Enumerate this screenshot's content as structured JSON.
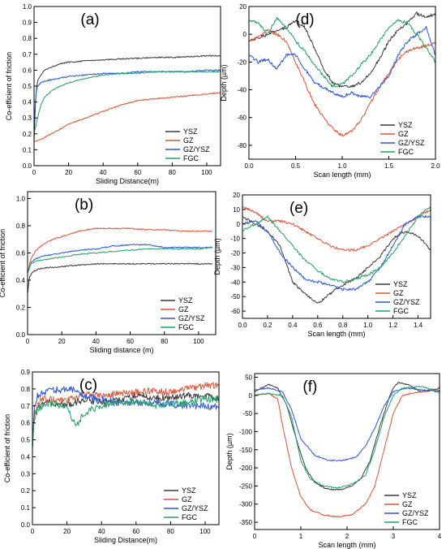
{
  "colors": {
    "YSZ": "#3a3a3a",
    "GZ": "#d9553a",
    "GZ/YSZ": "#2a56d6",
    "FGC": "#24a06a"
  },
  "chart_data": [
    {
      "id": "a",
      "type": "line",
      "panel_label": "(a)",
      "xlabel": "Sliding Distance(m)",
      "ylabel": "Co-efficient of friction",
      "xlim": [
        0,
        108
      ],
      "ylim": [
        0,
        1.0
      ],
      "xticks": [
        0,
        20,
        40,
        60,
        80,
        100
      ],
      "yticks": [
        0.0,
        0.1,
        0.2,
        0.3,
        0.4,
        0.5,
        0.6,
        0.7,
        0.8,
        0.9,
        1.0
      ],
      "legend": "bottom-right",
      "grid": false,
      "series": [
        {
          "name": "YSZ",
          "x": [
            0,
            1,
            2,
            4,
            6,
            10,
            15,
            20,
            30,
            40,
            50,
            60,
            70,
            80,
            90,
            100,
            108
          ],
          "y": [
            0.15,
            0.45,
            0.53,
            0.57,
            0.6,
            0.62,
            0.64,
            0.65,
            0.66,
            0.665,
            0.67,
            0.675,
            0.68,
            0.68,
            0.685,
            0.69,
            0.69
          ]
        },
        {
          "name": "GZ",
          "x": [
            0,
            5,
            10,
            15,
            20,
            30,
            40,
            50,
            60,
            70,
            80,
            90,
            100,
            108
          ],
          "y": [
            0.15,
            0.17,
            0.2,
            0.23,
            0.26,
            0.3,
            0.34,
            0.38,
            0.41,
            0.42,
            0.43,
            0.44,
            0.45,
            0.46
          ]
        },
        {
          "name": "GZ/YSZ",
          "x": [
            0,
            1,
            2,
            4,
            6,
            10,
            15,
            20,
            30,
            40,
            50,
            60,
            70,
            80,
            90,
            100,
            108
          ],
          "y": [
            0.25,
            0.45,
            0.5,
            0.52,
            0.53,
            0.54,
            0.55,
            0.56,
            0.57,
            0.58,
            0.58,
            0.59,
            0.59,
            0.59,
            0.59,
            0.6,
            0.6
          ]
        },
        {
          "name": "FGC",
          "x": [
            0,
            2,
            4,
            6,
            10,
            15,
            20,
            30,
            40,
            50,
            60,
            70,
            80,
            90,
            100,
            108
          ],
          "y": [
            0.2,
            0.3,
            0.38,
            0.43,
            0.47,
            0.5,
            0.52,
            0.55,
            0.57,
            0.58,
            0.58,
            0.59,
            0.59,
            0.59,
            0.59,
            0.59
          ]
        }
      ]
    },
    {
      "id": "b",
      "type": "line",
      "panel_label": "(b)",
      "xlabel": "Sliding distance (m)",
      "ylabel": "Co-efficient of friction",
      "xlim": [
        0,
        110
      ],
      "ylim": [
        0,
        1.05
      ],
      "xticks": [
        0,
        20,
        40,
        60,
        80,
        100
      ],
      "yticks": [
        0.0,
        0.2,
        0.4,
        0.6,
        0.8,
        1.0
      ],
      "legend": "bottom-right",
      "grid": false,
      "series": [
        {
          "name": "YSZ",
          "x": [
            0,
            1,
            3,
            6,
            10,
            20,
            30,
            40,
            50,
            60,
            70,
            80,
            90,
            100,
            108
          ],
          "y": [
            0.3,
            0.42,
            0.46,
            0.48,
            0.49,
            0.5,
            0.51,
            0.52,
            0.52,
            0.52,
            0.52,
            0.52,
            0.52,
            0.52,
            0.52
          ]
        },
        {
          "name": "GZ",
          "x": [
            0,
            2,
            5,
            10,
            15,
            20,
            30,
            40,
            50,
            60,
            70,
            80,
            90,
            100,
            108
          ],
          "y": [
            0.45,
            0.56,
            0.62,
            0.67,
            0.7,
            0.72,
            0.76,
            0.78,
            0.78,
            0.78,
            0.77,
            0.77,
            0.76,
            0.76,
            0.76
          ]
        },
        {
          "name": "GZ/YSZ",
          "x": [
            0,
            2,
            5,
            10,
            15,
            20,
            30,
            40,
            50,
            60,
            70,
            80,
            90,
            100,
            108
          ],
          "y": [
            0.45,
            0.53,
            0.56,
            0.58,
            0.59,
            0.6,
            0.62,
            0.63,
            0.65,
            0.66,
            0.66,
            0.64,
            0.64,
            0.64,
            0.64
          ]
        },
        {
          "name": "FGC",
          "x": [
            0,
            2,
            5,
            10,
            15,
            20,
            30,
            40,
            50,
            60,
            70,
            80,
            90,
            100,
            108
          ],
          "y": [
            0.45,
            0.52,
            0.54,
            0.55,
            0.56,
            0.57,
            0.59,
            0.6,
            0.61,
            0.62,
            0.63,
            0.63,
            0.63,
            0.63,
            0.64
          ]
        }
      ]
    },
    {
      "id": "c",
      "type": "line",
      "panel_label": "(c)",
      "xlabel": "Sliding Distance(m)",
      "ylabel": "Co-efficient of friction",
      "xlim": [
        0,
        108
      ],
      "ylim": [
        0,
        0.9
      ],
      "xticks": [
        0,
        20,
        40,
        60,
        80,
        100
      ],
      "yticks": [
        0.0,
        0.1,
        0.2,
        0.3,
        0.4,
        0.5,
        0.6,
        0.7,
        0.8,
        0.9
      ],
      "legend": "bottom-right",
      "grid": false,
      "series": [
        {
          "name": "YSZ",
          "x": [
            0,
            1,
            3,
            6,
            10,
            20,
            30,
            40,
            50,
            60,
            70,
            80,
            90,
            100,
            108
          ],
          "y": [
            0.45,
            0.65,
            0.7,
            0.71,
            0.72,
            0.7,
            0.74,
            0.72,
            0.73,
            0.76,
            0.75,
            0.75,
            0.76,
            0.76,
            0.74
          ]
        },
        {
          "name": "GZ",
          "x": [
            0,
            1,
            3,
            6,
            10,
            20,
            30,
            40,
            50,
            60,
            70,
            80,
            90,
            100,
            108
          ],
          "y": [
            0.45,
            0.65,
            0.72,
            0.74,
            0.74,
            0.73,
            0.77,
            0.76,
            0.77,
            0.78,
            0.79,
            0.78,
            0.8,
            0.82,
            0.82
          ]
        },
        {
          "name": "GZ/YSZ",
          "x": [
            0,
            1,
            3,
            6,
            10,
            20,
            25,
            30,
            40,
            50,
            60,
            70,
            80,
            90,
            100,
            108
          ],
          "y": [
            0.45,
            0.68,
            0.76,
            0.78,
            0.79,
            0.8,
            0.8,
            0.76,
            0.74,
            0.72,
            0.72,
            0.72,
            0.71,
            0.7,
            0.7,
            0.69
          ]
        },
        {
          "name": "FGC",
          "x": [
            0,
            1,
            3,
            6,
            10,
            20,
            25,
            30,
            40,
            50,
            60,
            70,
            80,
            90,
            100,
            108
          ],
          "y": [
            0.45,
            0.62,
            0.68,
            0.7,
            0.71,
            0.7,
            0.58,
            0.66,
            0.7,
            0.72,
            0.72,
            0.7,
            0.71,
            0.72,
            0.74,
            0.74
          ]
        }
      ]
    },
    {
      "id": "d",
      "type": "line",
      "panel_label": "(d)",
      "xlabel": "Scan length (mm)",
      "ylabel": "Depth (µm)",
      "xlim": [
        0,
        2.0
      ],
      "ylim": [
        -90,
        20
      ],
      "xticks": [
        0.0,
        0.5,
        1.0,
        1.5,
        2.0
      ],
      "yticks": [
        -80,
        -60,
        -40,
        -20,
        0,
        20
      ],
      "legend": "bottom-right",
      "grid": false,
      "series": [
        {
          "name": "YSZ",
          "x": [
            0,
            0.1,
            0.2,
            0.3,
            0.4,
            0.5,
            0.6,
            0.7,
            0.8,
            0.9,
            1.0,
            1.1,
            1.2,
            1.3,
            1.4,
            1.5,
            1.6,
            1.7,
            1.8,
            1.9,
            2.0
          ],
          "y": [
            -5,
            -3,
            0,
            3,
            5,
            10,
            5,
            -10,
            -25,
            -35,
            -38,
            -38,
            -35,
            -28,
            -18,
            -5,
            3,
            8,
            15,
            12,
            15
          ]
        },
        {
          "name": "GZ",
          "x": [
            0,
            0.1,
            0.2,
            0.3,
            0.4,
            0.5,
            0.6,
            0.7,
            0.8,
            0.9,
            1.0,
            1.1,
            1.2,
            1.3,
            1.4,
            1.5,
            1.6,
            1.7,
            1.8,
            1.9,
            2.0
          ],
          "y": [
            -5,
            -2,
            3,
            0,
            -5,
            -20,
            -35,
            -50,
            -60,
            -68,
            -73,
            -70,
            -62,
            -50,
            -38,
            -28,
            -18,
            -12,
            -10,
            -8,
            -7
          ]
        },
        {
          "name": "GZ/YSZ",
          "x": [
            0,
            0.1,
            0.2,
            0.3,
            0.4,
            0.5,
            0.6,
            0.7,
            0.8,
            0.9,
            1.0,
            1.1,
            1.2,
            1.3,
            1.4,
            1.5,
            1.6,
            1.7,
            1.8,
            1.9,
            2.0
          ],
          "y": [
            -15,
            -20,
            -18,
            -25,
            -15,
            -15,
            -25,
            -35,
            -38,
            -42,
            -45,
            -42,
            -45,
            -45,
            -38,
            -30,
            -15,
            -5,
            0,
            5,
            -15
          ]
        },
        {
          "name": "FGC",
          "x": [
            0,
            0.1,
            0.2,
            0.3,
            0.4,
            0.5,
            0.6,
            0.7,
            0.8,
            0.9,
            1.0,
            1.1,
            1.2,
            1.3,
            1.4,
            1.5,
            1.6,
            1.7,
            1.8,
            1.9,
            2.0
          ],
          "y": [
            10,
            8,
            0,
            12,
            5,
            -5,
            -12,
            -22,
            -30,
            -38,
            -36,
            -30,
            -22,
            -15,
            -5,
            5,
            10,
            8,
            0,
            -10,
            -20
          ]
        }
      ]
    },
    {
      "id": "e",
      "type": "line",
      "panel_label": "(e)",
      "xlabel": "Scan length (mm)",
      "ylabel": "Depth (µm)",
      "xlim": [
        0,
        1.5
      ],
      "ylim": [
        -65,
        20
      ],
      "xticks": [
        0.0,
        0.2,
        0.4,
        0.6,
        0.8,
        1.0,
        1.2,
        1.4
      ],
      "yticks": [
        -60,
        -50,
        -40,
        -30,
        -20,
        -10,
        0,
        10,
        20
      ],
      "legend": "bottom-right",
      "grid": false,
      "series": [
        {
          "name": "YSZ",
          "x": [
            0,
            0.1,
            0.2,
            0.3,
            0.4,
            0.5,
            0.6,
            0.7,
            0.8,
            0.9,
            1.0,
            1.1,
            1.2,
            1.3,
            1.4,
            1.5
          ],
          "y": [
            5,
            0,
            -5,
            -15,
            -40,
            -48,
            -55,
            -48,
            -42,
            -38,
            -30,
            -22,
            -10,
            -5,
            -8,
            -18
          ]
        },
        {
          "name": "GZ",
          "x": [
            0,
            0.1,
            0.2,
            0.3,
            0.4,
            0.5,
            0.6,
            0.7,
            0.8,
            0.9,
            1.0,
            1.1,
            1.2,
            1.3,
            1.4,
            1.5
          ],
          "y": [
            12,
            8,
            2,
            2,
            0,
            -5,
            -10,
            -15,
            -18,
            -18,
            -15,
            -10,
            -5,
            0,
            5,
            10
          ]
        },
        {
          "name": "GZ/YSZ",
          "x": [
            0,
            0.1,
            0.2,
            0.3,
            0.4,
            0.5,
            0.6,
            0.7,
            0.8,
            0.9,
            1.0,
            1.1,
            1.2,
            1.3,
            1.4,
            1.5
          ],
          "y": [
            0,
            2,
            -5,
            -20,
            -30,
            -38,
            -40,
            -42,
            -45,
            -45,
            -40,
            -30,
            -15,
            0,
            5,
            5
          ]
        },
        {
          "name": "FGC",
          "x": [
            0,
            0.1,
            0.2,
            0.3,
            0.4,
            0.5,
            0.6,
            0.7,
            0.8,
            0.9,
            1.0,
            1.1,
            1.2,
            1.3,
            1.4,
            1.5
          ],
          "y": [
            -5,
            0,
            5,
            -5,
            -15,
            -25,
            -32,
            -38,
            -40,
            -38,
            -35,
            -30,
            -20,
            -8,
            5,
            12
          ]
        }
      ]
    },
    {
      "id": "f",
      "type": "line",
      "panel_label": "(f)",
      "xlabel": "Scan length (mm)",
      "ylabel": "Depth (µm)",
      "xlim": [
        0,
        4
      ],
      "ylim": [
        -370,
        60
      ],
      "xticks": [
        0,
        1,
        2,
        3,
        4
      ],
      "yticks": [
        -350,
        -300,
        -250,
        -200,
        -150,
        -100,
        -50,
        0,
        50
      ],
      "legend": "bottom-right",
      "grid": false,
      "series": [
        {
          "name": "YSZ",
          "x": [
            0,
            0.3,
            0.5,
            0.7,
            0.9,
            1.1,
            1.3,
            1.5,
            1.7,
            1.9,
            2.1,
            2.3,
            2.5,
            2.7,
            2.9,
            3.0,
            3.1,
            3.3,
            3.6,
            4.0
          ],
          "y": [
            10,
            30,
            20,
            -30,
            -120,
            -200,
            -240,
            -255,
            -260,
            -260,
            -250,
            -230,
            -180,
            -90,
            -10,
            20,
            35,
            30,
            10,
            20
          ]
        },
        {
          "name": "GZ",
          "x": [
            0,
            0.3,
            0.5,
            0.6,
            0.8,
            1.0,
            1.2,
            1.5,
            1.8,
            2.1,
            2.4,
            2.6,
            2.8,
            3.0,
            3.2,
            3.6,
            4.0
          ],
          "y": [
            0,
            5,
            -10,
            -80,
            -200,
            -280,
            -315,
            -330,
            -335,
            -330,
            -300,
            -250,
            -150,
            -50,
            0,
            10,
            15
          ]
        },
        {
          "name": "GZ/YSZ",
          "x": [
            0,
            0.3,
            0.6,
            0.8,
            1.0,
            1.3,
            1.6,
            1.9,
            2.2,
            2.4,
            2.6,
            2.8,
            3.0,
            3.3,
            3.6,
            4.0
          ],
          "y": [
            15,
            20,
            10,
            -40,
            -120,
            -165,
            -180,
            -180,
            -170,
            -140,
            -90,
            -30,
            10,
            20,
            15,
            10
          ]
        },
        {
          "name": "FGC",
          "x": [
            0,
            0.3,
            0.6,
            0.8,
            1.0,
            1.2,
            1.5,
            1.8,
            2.1,
            2.4,
            2.6,
            2.8,
            3.0,
            3.2,
            3.6,
            4.0
          ],
          "y": [
            0,
            5,
            0,
            -60,
            -180,
            -230,
            -250,
            -255,
            -245,
            -220,
            -150,
            -60,
            0,
            20,
            25,
            10
          ]
        }
      ]
    }
  ]
}
